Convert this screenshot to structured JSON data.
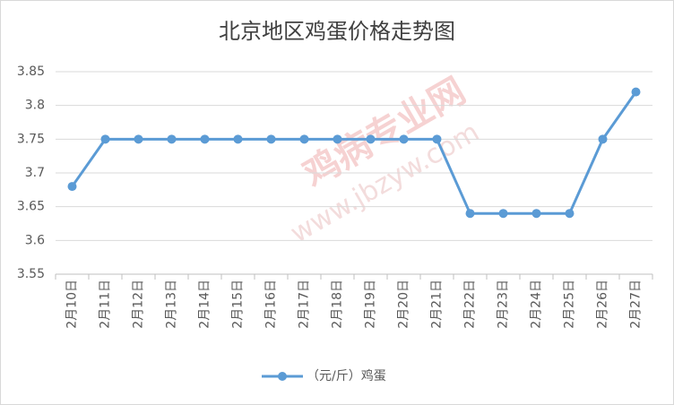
{
  "chart_data": {
    "type": "line",
    "title": "北京地区鸡蛋价格走势图",
    "watermark": [
      "鸡病专业网",
      "www.jbzyw.com"
    ],
    "categories": [
      "2月10日",
      "2月11日",
      "2月12日",
      "2月13日",
      "2月14日",
      "2月15日",
      "2月16日",
      "2月17日",
      "2月18日",
      "2月19日",
      "2月20日",
      "2月21日",
      "2月22日",
      "2月23日",
      "2月24日",
      "2月25日",
      "2月26日",
      "2月27日"
    ],
    "series": [
      {
        "name": "（元/斤）鸡蛋",
        "color": "#5b9bd5",
        "values": [
          3.68,
          3.75,
          3.75,
          3.75,
          3.75,
          3.75,
          3.75,
          3.75,
          3.75,
          3.75,
          3.75,
          3.75,
          3.64,
          3.64,
          3.64,
          3.64,
          3.75,
          3.82
        ]
      }
    ],
    "ylim": [
      3.55,
      3.85
    ],
    "yticks": [
      3.55,
      3.6,
      3.65,
      3.7,
      3.75,
      3.8,
      3.85
    ],
    "grid": true,
    "legend": "bottom"
  }
}
